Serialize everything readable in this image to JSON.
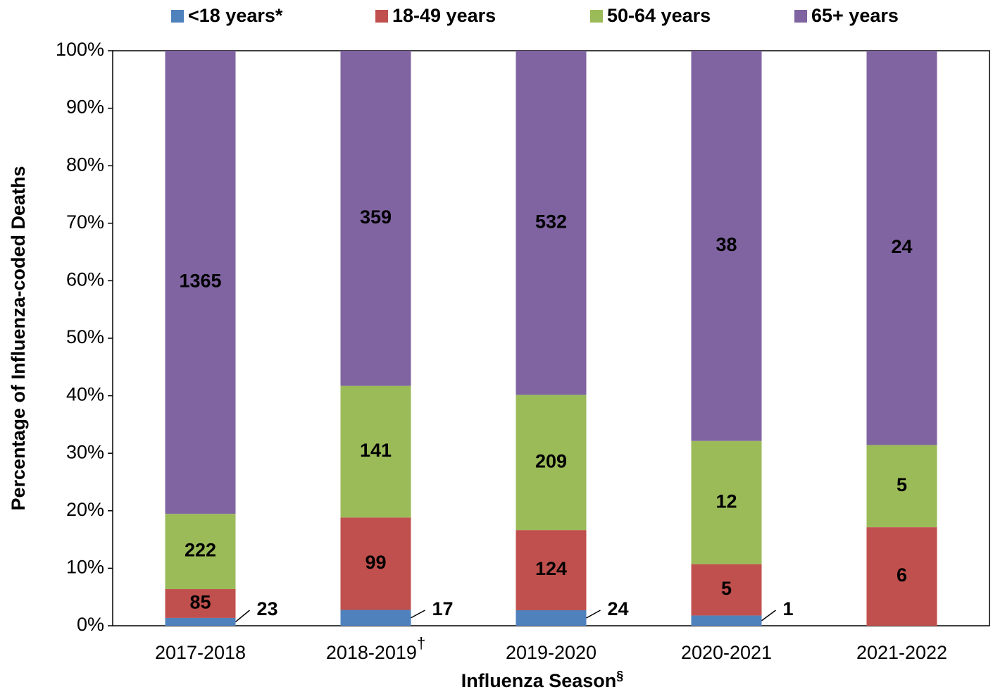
{
  "chart_data": {
    "type": "stacked-percent-bar",
    "ylabel": "Percentage of Influenza-coded Deaths",
    "xlabel": "Influenza Season",
    "xlabel_note": "§",
    "categories": [
      "2017-2018",
      "2018-2019",
      "2019-2020",
      "2020-2021",
      "2021-2022"
    ],
    "category_notes": [
      null,
      "†",
      null,
      null,
      null
    ],
    "series": [
      {
        "name": "<18 years*",
        "color": "#4f81bd",
        "values": [
          23,
          17,
          24,
          1,
          null
        ]
      },
      {
        "name": "18-49 years",
        "color": "#c0504d",
        "values": [
          85,
          99,
          124,
          5,
          6
        ]
      },
      {
        "name": "50-64 years",
        "color": "#9bbb59",
        "values": [
          222,
          141,
          209,
          12,
          5
        ]
      },
      {
        "name": "65+ years",
        "color": "#8064a2",
        "values": [
          1365,
          359,
          532,
          38,
          24
        ]
      }
    ],
    "ylim": [
      0,
      100
    ],
    "yticks": [
      {
        "value": 0,
        "label": "0%"
      },
      {
        "value": 10,
        "label": "10%"
      },
      {
        "value": 20,
        "label": "20%"
      },
      {
        "value": 30,
        "label": "30%"
      },
      {
        "value": 40,
        "label": "40%"
      },
      {
        "value": 50,
        "label": "50%"
      },
      {
        "value": 60,
        "label": "60%"
      },
      {
        "value": 70,
        "label": "70%"
      },
      {
        "value": 80,
        "label": "80%"
      },
      {
        "value": 90,
        "label": "90%"
      },
      {
        "value": 100,
        "label": "100%"
      }
    ]
  }
}
